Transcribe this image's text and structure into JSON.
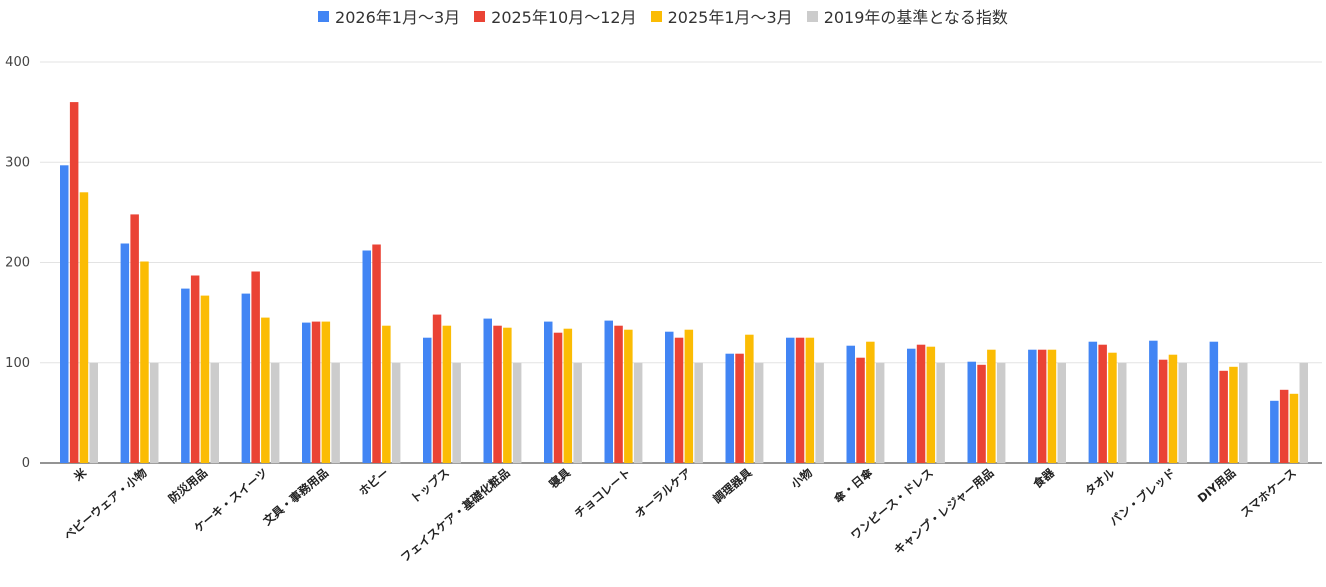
{
  "chart_data": {
    "type": "bar",
    "title": "",
    "xlabel": "",
    "ylabel": "",
    "ylim": [
      0,
      400
    ],
    "yticks": [
      "0",
      "100",
      "200",
      "300",
      "400"
    ],
    "grid": true,
    "legend_position": "top",
    "categories": [
      "米",
      "ベビーウェア・小物",
      "防災用品",
      "ケーキ・スイーツ",
      "文具・事務用品",
      "ホビー",
      "トップス",
      "フェイスケア・基礎化粧品",
      "寝具",
      "チョコレート",
      "オーラルケア",
      "調理器具",
      "小物",
      "傘・日傘",
      "ワンピース・ドレス",
      "キャンプ・レジャー用品",
      "食器",
      "タオル",
      "パン・ブレッド",
      "DIY用品",
      "スマホケース"
    ],
    "series": [
      {
        "name": "2026年1月〜3月",
        "color": "#4285f4",
        "values": [
          297,
          219,
          174,
          169,
          140,
          212,
          125,
          144,
          141,
          142,
          131,
          109,
          125,
          117,
          114,
          101,
          113,
          121,
          122,
          121,
          62
        ]
      },
      {
        "name": "2025年10月〜12月",
        "color": "#ea4335",
        "values": [
          360,
          248,
          187,
          191,
          141,
          218,
          148,
          137,
          130,
          137,
          125,
          109,
          125,
          105,
          118,
          98,
          113,
          118,
          103,
          92,
          73
        ]
      },
      {
        "name": "2025年1月〜3月",
        "color": "#fbbc04",
        "values": [
          270,
          201,
          167,
          145,
          141,
          137,
          137,
          135,
          134,
          133,
          133,
          128,
          125,
          121,
          116,
          113,
          113,
          110,
          108,
          96,
          69
        ]
      },
      {
        "name": "2019年の基準となる指数",
        "color": "#cccccc",
        "values": [
          100,
          100,
          100,
          100,
          100,
          100,
          100,
          100,
          100,
          100,
          100,
          100,
          100,
          100,
          100,
          100,
          100,
          100,
          100,
          100,
          100
        ]
      }
    ]
  }
}
